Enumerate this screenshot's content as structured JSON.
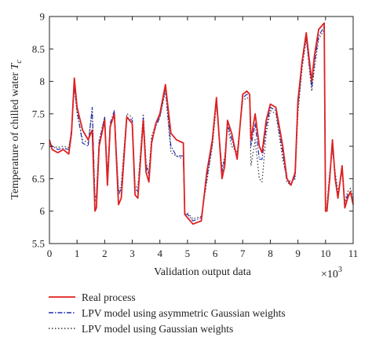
{
  "chart_data": {
    "type": "line",
    "xlabel": "Validation output data",
    "x_multiplier": "×10",
    "x_multiplier_exp": "3",
    "ylabel_main": "Temperature of chilled water ",
    "ylabel_var": "T",
    "ylabel_sub": "c",
    "xlim": [
      0,
      11
    ],
    "ylim": [
      5.5,
      9
    ],
    "x_ticks": [
      "0",
      "1",
      "2",
      "3",
      "4",
      "5",
      "6",
      "7",
      "8",
      "9",
      "10",
      "11"
    ],
    "y_ticks": [
      "5.5",
      "6",
      "6.5",
      "7",
      "7.5",
      "8",
      "8.5",
      "9"
    ],
    "grid": false,
    "legend_position": "bottom-left, below plot",
    "series": [
      {
        "name": "Real process",
        "color": "#e02020",
        "style": "solid",
        "x": [
          0,
          0.1,
          0.3,
          0.5,
          0.7,
          0.8,
          0.9,
          1.0,
          1.2,
          1.4,
          1.55,
          1.65,
          1.7,
          1.8,
          2.0,
          2.1,
          2.2,
          2.35,
          2.5,
          2.6,
          2.8,
          3.0,
          3.1,
          3.2,
          3.4,
          3.5,
          3.6,
          3.7,
          3.85,
          4.0,
          4.2,
          4.4,
          4.6,
          4.85,
          4.9,
          5.0,
          5.2,
          5.5,
          5.7,
          5.9,
          6.05,
          6.25,
          6.35,
          6.45,
          6.6,
          6.8,
          7.0,
          7.15,
          7.25,
          7.3,
          7.45,
          7.6,
          7.7,
          7.85,
          8.0,
          8.2,
          8.45,
          8.6,
          8.75,
          8.9,
          9.0,
          9.15,
          9.3,
          9.5,
          9.6,
          9.75,
          9.95,
          10.0,
          10.05,
          10.15,
          10.25,
          10.35,
          10.45,
          10.6,
          10.7,
          10.8,
          10.9,
          11.0
        ],
        "y": [
          7.1,
          6.95,
          6.9,
          6.95,
          6.88,
          7.2,
          8.05,
          7.6,
          7.25,
          7.1,
          7.25,
          6.0,
          6.05,
          7.0,
          7.4,
          6.4,
          7.3,
          7.5,
          6.1,
          6.2,
          7.45,
          7.35,
          6.25,
          6.2,
          7.4,
          6.6,
          6.45,
          7.05,
          7.35,
          7.5,
          7.95,
          7.2,
          7.1,
          7.05,
          5.95,
          5.9,
          5.8,
          5.85,
          6.6,
          7.1,
          7.75,
          6.5,
          6.7,
          7.4,
          7.2,
          6.8,
          7.8,
          7.85,
          7.8,
          7.1,
          7.5,
          7.0,
          6.9,
          7.4,
          7.65,
          7.6,
          7.0,
          6.5,
          6.4,
          6.6,
          7.7,
          8.3,
          8.75,
          8.0,
          8.4,
          8.8,
          8.9,
          6.0,
          6.0,
          6.5,
          7.1,
          6.5,
          6.2,
          6.7,
          6.05,
          6.2,
          6.3,
          6.1
        ]
      },
      {
        "name": "LPV model using asymmetric Gaussian weights",
        "color": "#2030b0",
        "style": "dashdot",
        "x": [
          0,
          0.1,
          0.3,
          0.5,
          0.7,
          0.8,
          0.9,
          1.0,
          1.2,
          1.4,
          1.55,
          1.65,
          1.7,
          1.8,
          2.0,
          2.1,
          2.2,
          2.35,
          2.5,
          2.6,
          2.8,
          3.0,
          3.1,
          3.2,
          3.4,
          3.5,
          3.6,
          3.7,
          3.85,
          4.0,
          4.2,
          4.4,
          4.6,
          4.85,
          4.9,
          5.0,
          5.2,
          5.5,
          5.7,
          5.9,
          6.05,
          6.25,
          6.35,
          6.45,
          6.6,
          6.8,
          7.0,
          7.15,
          7.25,
          7.3,
          7.45,
          7.6,
          7.7,
          7.85,
          8.0,
          8.2,
          8.45,
          8.6,
          8.75,
          8.9,
          9.0,
          9.15,
          9.3,
          9.5,
          9.6,
          9.75,
          9.95,
          10.0,
          10.05,
          10.15,
          10.25,
          10.35,
          10.45,
          10.6,
          10.7,
          10.8,
          10.9,
          11.0
        ],
        "y": [
          7.05,
          7.0,
          6.95,
          6.97,
          6.95,
          7.25,
          7.95,
          7.55,
          7.05,
          7.0,
          7.6,
          6.15,
          6.2,
          7.05,
          7.45,
          6.5,
          7.35,
          7.55,
          6.25,
          6.35,
          7.45,
          7.4,
          6.35,
          6.3,
          7.45,
          6.7,
          6.55,
          7.1,
          7.3,
          7.45,
          7.9,
          7.0,
          6.85,
          6.85,
          5.95,
          5.95,
          5.85,
          5.9,
          6.5,
          7.05,
          7.7,
          6.6,
          6.8,
          7.35,
          7.1,
          6.85,
          7.75,
          7.8,
          7.8,
          7.0,
          7.35,
          6.8,
          6.8,
          7.3,
          7.6,
          7.55,
          6.9,
          6.45,
          6.4,
          6.55,
          7.6,
          8.25,
          8.7,
          7.9,
          8.3,
          8.7,
          8.85,
          6.05,
          6.05,
          6.55,
          7.0,
          6.55,
          6.25,
          6.65,
          6.1,
          6.25,
          6.3,
          6.15
        ]
      },
      {
        "name": "LPV model using Gaussian weights",
        "color": "#333333",
        "style": "dotted",
        "x": [
          0,
          0.1,
          0.3,
          0.5,
          0.7,
          0.8,
          0.9,
          1.0,
          1.2,
          1.4,
          1.55,
          1.65,
          1.7,
          1.8,
          2.0,
          2.1,
          2.2,
          2.35,
          2.5,
          2.6,
          2.8,
          3.0,
          3.1,
          3.2,
          3.4,
          3.5,
          3.6,
          3.7,
          3.85,
          4.0,
          4.2,
          4.4,
          4.6,
          4.85,
          4.9,
          5.0,
          5.2,
          5.5,
          5.7,
          5.9,
          6.05,
          6.25,
          6.35,
          6.45,
          6.6,
          6.8,
          7.0,
          7.15,
          7.25,
          7.3,
          7.45,
          7.6,
          7.7,
          7.85,
          8.0,
          8.2,
          8.45,
          8.6,
          8.75,
          8.9,
          9.0,
          9.15,
          9.3,
          9.5,
          9.6,
          9.75,
          9.95,
          10.0,
          10.05,
          10.15,
          10.25,
          10.35,
          10.45,
          10.6,
          10.7,
          10.8,
          10.9,
          11.0
        ],
        "y": [
          7.0,
          7.0,
          6.98,
          7.0,
          6.98,
          7.2,
          7.9,
          7.5,
          7.1,
          7.05,
          7.55,
          6.2,
          6.25,
          7.1,
          7.45,
          6.55,
          7.3,
          7.5,
          6.3,
          6.4,
          7.5,
          7.45,
          6.4,
          6.35,
          7.5,
          6.75,
          6.6,
          7.15,
          7.35,
          7.45,
          7.85,
          6.9,
          6.85,
          6.8,
          5.98,
          5.97,
          5.88,
          5.92,
          6.45,
          7.0,
          7.65,
          6.65,
          6.85,
          7.3,
          7.0,
          6.9,
          7.7,
          7.75,
          7.7,
          6.7,
          7.1,
          6.5,
          6.45,
          7.2,
          7.55,
          7.5,
          6.8,
          6.5,
          6.45,
          6.5,
          7.5,
          8.2,
          8.65,
          7.85,
          8.2,
          8.65,
          8.8,
          6.1,
          6.1,
          6.6,
          6.95,
          6.6,
          6.3,
          6.6,
          6.15,
          6.3,
          6.35,
          6.2
        ]
      }
    ]
  }
}
